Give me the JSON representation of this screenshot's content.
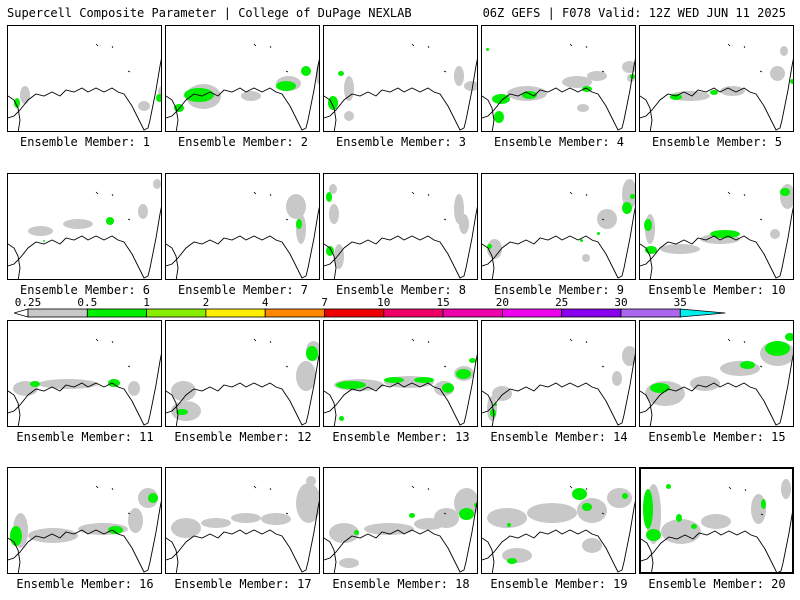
{
  "header": {
    "left": "Supercell Composite Parameter | College of DuPage NEXLAB",
    "right": "06Z GEFS | F078 Valid: 12Z WED JUN 11 2025"
  },
  "legend": {
    "labels": [
      "0.25",
      "0.5",
      "1",
      "2",
      "4",
      "7",
      "10",
      "15",
      "20",
      "25",
      "30",
      "35"
    ],
    "colors": [
      "#ffffff",
      "#c8c8c8",
      "#00ee00",
      "#88ee00",
      "#ffee00",
      "#ff8800",
      "#ee0000",
      "#ee0066",
      "#ee00aa",
      "#ee00ee",
      "#8800ee",
      "#aa66ee",
      "#00eeee"
    ]
  },
  "members": [
    {
      "label": "Ensemble Member: 1",
      "gray": [
        [
          12,
          60,
          10,
          18
        ],
        [
          130,
          75,
          12,
          10
        ],
        [
          150,
          60,
          8,
          12
        ]
      ],
      "green": [
        [
          6,
          72,
          6,
          10
        ],
        [
          148,
          68,
          7,
          8
        ]
      ]
    },
    {
      "label": "Ensemble Member: 2",
      "gray": [
        [
          20,
          58,
          35,
          25
        ],
        [
          110,
          50,
          25,
          15
        ],
        [
          150,
          38,
          5,
          20
        ],
        [
          75,
          65,
          20,
          10
        ]
      ],
      "green": [
        [
          18,
          62,
          30,
          14
        ],
        [
          8,
          78,
          10,
          8
        ],
        [
          110,
          55,
          20,
          10
        ],
        [
          135,
          40,
          10,
          10
        ]
      ]
    },
    {
      "label": "Ensemble Member: 3",
      "gray": [
        [
          20,
          50,
          10,
          25
        ],
        [
          130,
          40,
          10,
          20
        ],
        [
          140,
          55,
          15,
          10
        ],
        [
          20,
          85,
          10,
          10
        ]
      ],
      "green": [
        [
          4,
          70,
          10,
          14
        ],
        [
          14,
          45,
          6,
          5
        ]
      ]
    },
    {
      "label": "Ensemble Member: 4",
      "gray": [
        [
          25,
          60,
          40,
          15
        ],
        [
          80,
          50,
          30,
          12
        ],
        [
          105,
          45,
          20,
          10
        ],
        [
          145,
          48,
          8,
          8
        ],
        [
          140,
          35,
          15,
          12
        ],
        [
          95,
          78,
          12,
          8
        ]
      ],
      "green": [
        [
          10,
          68,
          18,
          10
        ],
        [
          12,
          85,
          10,
          12
        ],
        [
          40,
          65,
          15,
          8
        ],
        [
          100,
          60,
          10,
          6
        ],
        [
          148,
          48,
          5,
          5
        ],
        [
          4,
          22,
          3,
          3
        ]
      ]
    },
    {
      "label": "Ensemble Member: 5",
      "gray": [
        [
          30,
          65,
          40,
          10
        ],
        [
          80,
          60,
          25,
          10
        ],
        [
          130,
          40,
          15,
          15
        ],
        [
          140,
          20,
          8,
          10
        ]
      ],
      "green": [
        [
          30,
          68,
          12,
          6
        ],
        [
          70,
          64,
          8,
          5
        ],
        [
          150,
          53,
          5,
          5
        ]
      ]
    },
    {
      "label": "Ensemble Member: 6",
      "gray": [
        [
          20,
          52,
          25,
          10
        ],
        [
          55,
          45,
          30,
          10
        ],
        [
          130,
          30,
          10,
          15
        ],
        [
          145,
          5,
          8,
          10
        ]
      ],
      "green": [
        [
          98,
          43,
          8,
          8
        ],
        [
          35,
          66,
          2,
          2
        ]
      ]
    },
    {
      "label": "Ensemble Member: 7",
      "gray": [
        [
          130,
          40,
          10,
          30
        ],
        [
          120,
          20,
          20,
          25
        ]
      ],
      "green": [
        [
          130,
          45,
          6,
          10
        ]
      ]
    },
    {
      "label": "Ensemble Member: 8",
      "gray": [
        [
          5,
          10,
          8,
          10
        ],
        [
          5,
          30,
          10,
          20
        ],
        [
          10,
          70,
          10,
          25
        ],
        [
          130,
          20,
          10,
          30
        ],
        [
          135,
          40,
          10,
          20
        ]
      ],
      "green": [
        [
          2,
          18,
          6,
          10
        ],
        [
          2,
          72,
          8,
          10
        ]
      ]
    },
    {
      "label": "Ensemble Member: 9",
      "gray": [
        [
          140,
          5,
          15,
          30
        ],
        [
          115,
          35,
          20,
          20
        ],
        [
          5,
          65,
          15,
          20
        ],
        [
          100,
          80,
          8,
          8
        ]
      ],
      "green": [
        [
          140,
          28,
          10,
          12
        ],
        [
          148,
          20,
          5,
          5
        ],
        [
          115,
          58,
          3,
          3
        ],
        [
          5,
          70,
          5,
          5
        ],
        [
          98,
          65,
          3,
          3
        ]
      ]
    },
    {
      "label": "Ensemble Member: 10",
      "gray": [
        [
          5,
          40,
          10,
          30
        ],
        [
          20,
          70,
          40,
          10
        ],
        [
          60,
          60,
          40,
          10
        ],
        [
          140,
          10,
          15,
          25
        ],
        [
          130,
          55,
          10,
          10
        ]
      ],
      "green": [
        [
          4,
          45,
          8,
          12
        ],
        [
          5,
          72,
          12,
          8
        ],
        [
          70,
          56,
          30,
          8
        ],
        [
          140,
          14,
          10,
          8
        ]
      ]
    },
    {
      "label": "Ensemble Member: 11",
      "gray": [
        [
          5,
          60,
          25,
          15
        ],
        [
          30,
          58,
          60,
          10
        ],
        [
          120,
          60,
          12,
          15
        ]
      ],
      "green": [
        [
          22,
          60,
          10,
          6
        ],
        [
          100,
          58,
          12,
          8
        ]
      ]
    },
    {
      "label": "Ensemble Member: 12",
      "gray": [
        [
          5,
          60,
          25,
          20
        ],
        [
          5,
          80,
          30,
          20
        ],
        [
          130,
          40,
          20,
          30
        ],
        [
          140,
          20,
          15,
          20
        ]
      ],
      "green": [
        [
          140,
          25,
          12,
          15
        ],
        [
          10,
          88,
          12,
          6
        ]
      ]
    },
    {
      "label": "Ensemble Member: 13",
      "gray": [
        [
          10,
          58,
          50,
          12
        ],
        [
          60,
          55,
          50,
          12
        ],
        [
          110,
          60,
          20,
          15
        ],
        [
          130,
          45,
          20,
          15
        ]
      ],
      "green": [
        [
          12,
          60,
          30,
          8
        ],
        [
          60,
          56,
          20,
          6
        ],
        [
          90,
          56,
          20,
          6
        ],
        [
          118,
          62,
          12,
          10
        ],
        [
          132,
          48,
          15,
          10
        ],
        [
          145,
          37,
          7,
          5
        ],
        [
          15,
          95,
          5,
          5
        ]
      ]
    },
    {
      "label": "Ensemble Member: 14",
      "gray": [
        [
          5,
          75,
          10,
          25
        ],
        [
          10,
          65,
          20,
          15
        ],
        [
          140,
          25,
          15,
          20
        ],
        [
          130,
          50,
          10,
          15
        ]
      ],
      "green": [
        [
          8,
          88,
          6,
          8
        ],
        [
          12,
          82,
          3,
          3
        ]
      ]
    },
    {
      "label": "Ensemble Member: 15",
      "gray": [
        [
          5,
          60,
          40,
          25
        ],
        [
          50,
          55,
          30,
          15
        ],
        [
          80,
          40,
          40,
          15
        ],
        [
          120,
          20,
          35,
          25
        ]
      ],
      "green": [
        [
          10,
          62,
          20,
          10
        ],
        [
          100,
          40,
          15,
          8
        ],
        [
          125,
          20,
          25,
          15
        ],
        [
          145,
          12,
          10,
          8
        ]
      ]
    },
    {
      "label": "Ensemble Member: 16",
      "gray": [
        [
          5,
          45,
          15,
          35
        ],
        [
          20,
          60,
          50,
          15
        ],
        [
          70,
          55,
          50,
          12
        ],
        [
          120,
          40,
          15,
          25
        ],
        [
          130,
          20,
          20,
          20
        ]
      ],
      "green": [
        [
          2,
          58,
          12,
          20
        ],
        [
          100,
          58,
          15,
          8
        ],
        [
          140,
          25,
          10,
          10
        ]
      ]
    },
    {
      "label": "Ensemble Member: 17",
      "gray": [
        [
          5,
          50,
          30,
          20
        ],
        [
          35,
          50,
          30,
          10
        ],
        [
          65,
          45,
          30,
          10
        ],
        [
          95,
          45,
          30,
          12
        ],
        [
          130,
          15,
          25,
          40
        ],
        [
          140,
          8,
          10,
          10
        ]
      ],
      "green": []
    },
    {
      "label": "Ensemble Member: 18",
      "gray": [
        [
          5,
          55,
          30,
          20
        ],
        [
          40,
          55,
          50,
          12
        ],
        [
          90,
          50,
          30,
          12
        ],
        [
          110,
          40,
          25,
          20
        ],
        [
          130,
          20,
          25,
          30
        ],
        [
          15,
          90,
          20,
          10
        ]
      ],
      "green": [
        [
          30,
          62,
          5,
          5
        ],
        [
          85,
          45,
          6,
          5
        ],
        [
          135,
          40,
          15,
          12
        ],
        [
          150,
          35,
          4,
          4
        ]
      ]
    },
    {
      "label": "Ensemble Member: 19",
      "gray": [
        [
          5,
          40,
          40,
          20
        ],
        [
          45,
          35,
          50,
          20
        ],
        [
          95,
          30,
          30,
          25
        ],
        [
          125,
          20,
          25,
          20
        ],
        [
          20,
          80,
          30,
          15
        ],
        [
          100,
          70,
          20,
          15
        ]
      ],
      "green": [
        [
          90,
          20,
          15,
          12
        ],
        [
          100,
          35,
          10,
          8
        ],
        [
          25,
          90,
          10,
          6
        ],
        [
          140,
          25,
          6,
          6
        ],
        [
          25,
          55,
          4,
          4
        ]
      ]
    },
    {
      "label": "Ensemble Member: 20",
      "gray": [
        [
          5,
          15,
          15,
          60
        ],
        [
          20,
          50,
          40,
          25
        ],
        [
          60,
          45,
          30,
          15
        ],
        [
          110,
          25,
          15,
          30
        ],
        [
          140,
          10,
          10,
          20
        ]
      ],
      "green": [
        [
          2,
          20,
          10,
          40
        ],
        [
          5,
          60,
          15,
          12
        ],
        [
          35,
          45,
          6,
          8
        ],
        [
          50,
          55,
          6,
          5
        ],
        [
          120,
          30,
          5,
          10
        ],
        [
          25,
          15,
          5,
          5
        ]
      ]
    }
  ]
}
